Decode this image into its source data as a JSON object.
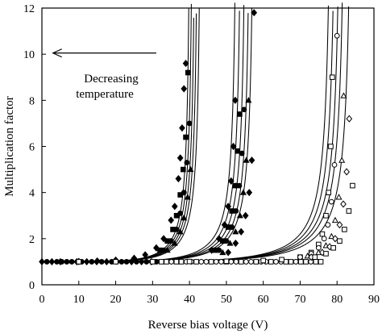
{
  "chart_data": {
    "type": "scatter",
    "title": "",
    "xlabel": "Reverse bias voltage (V)",
    "ylabel": "Multiplication factor",
    "xlim": [
      0,
      90
    ],
    "ylim": [
      0,
      12
    ],
    "xticks": [
      0,
      10,
      20,
      30,
      40,
      50,
      60,
      70,
      80,
      90
    ],
    "yticks": [
      0,
      2,
      4,
      6,
      8,
      10,
      12
    ],
    "grid": false,
    "legend": "none",
    "annotation": {
      "lines": [
        "Decreasing",
        "temperature"
      ],
      "arrow": "left",
      "arrow_from": [
        31,
        10.05
      ],
      "arrow_to": [
        3,
        10.05
      ]
    },
    "curve_families": [
      {
        "marker": "diamond-filled",
        "breakdowns": [
          40.5,
          41.2,
          41.9,
          42.6,
          43.4
        ]
      },
      {
        "marker": "mixed-filled",
        "breakdowns": [
          53.2,
          54.5,
          55.7,
          56.9,
          57.9
        ]
      },
      {
        "marker": "mixed-open",
        "breakdowns": [
          79.0,
          80.3,
          81.6,
          82.8,
          84.6
        ]
      }
    ],
    "series": [
      {
        "marker": "diamond-filled",
        "x": [
          5,
          10,
          15,
          20,
          25,
          28,
          31,
          33,
          35,
          36,
          37,
          37.5,
          38,
          38.5,
          39
        ],
        "y": [
          1.0,
          1.01,
          1.03,
          1.07,
          1.15,
          1.3,
          1.6,
          2.0,
          2.8,
          3.4,
          4.6,
          5.5,
          6.8,
          8.5,
          9.6
        ]
      },
      {
        "marker": "square-filled",
        "x": [
          32,
          34,
          35.5,
          36.5,
          37.5,
          38.3,
          39,
          39.6
        ],
        "y": [
          1.5,
          1.9,
          2.4,
          3.0,
          3.9,
          5.0,
          6.4,
          9.2
        ]
      },
      {
        "marker": "circle-filled",
        "x": [
          33,
          35,
          36.5,
          37.5,
          38.5,
          39.3,
          40
        ],
        "y": [
          1.5,
          1.9,
          2.4,
          3.1,
          4.0,
          5.3,
          7.0
        ]
      },
      {
        "marker": "triangle-filled",
        "x": [
          34,
          36,
          37.5,
          38.5,
          39.5,
          40.3
        ],
        "y": [
          1.5,
          1.8,
          2.3,
          2.9,
          3.8,
          5.0
        ]
      },
      {
        "marker": "diamond-filled",
        "x": [
          46,
          48,
          49.5,
          50.5,
          51.3,
          51.9,
          52.4
        ],
        "y": [
          1.5,
          2.0,
          2.6,
          3.4,
          4.5,
          6.0,
          8.0
        ]
      },
      {
        "marker": "square-filled",
        "x": [
          47,
          49,
          50.5,
          51.5,
          52.4,
          53,
          53.6
        ],
        "y": [
          1.5,
          1.9,
          2.5,
          3.2,
          4.3,
          5.8,
          7.4
        ]
      },
      {
        "marker": "circle-filled",
        "x": [
          48,
          50,
          51.5,
          52.6,
          53.5,
          54.2,
          54.8
        ],
        "y": [
          1.5,
          1.9,
          2.5,
          3.2,
          4.3,
          5.7,
          7.6
        ]
      },
      {
        "marker": "triangle-filled",
        "x": [
          49,
          51,
          52.5,
          53.7,
          54.6,
          55.4,
          56.0
        ],
        "y": [
          1.4,
          1.8,
          2.3,
          3.0,
          4.0,
          5.4,
          8.0
        ]
      },
      {
        "marker": "diamond-filled",
        "x": [
          50.5,
          52.5,
          54,
          55.2,
          56.2,
          56.9,
          57.5
        ],
        "y": [
          1.4,
          1.8,
          2.3,
          3.0,
          4.0,
          5.4,
          11.8
        ]
      },
      {
        "marker": "square-open",
        "x": [
          10,
          20,
          30,
          40,
          50,
          60,
          65,
          70,
          73,
          75,
          76,
          77,
          77.7,
          78.3,
          78.7
        ],
        "y": [
          1.0,
          1.0,
          1.0,
          1.01,
          1.02,
          1.05,
          1.09,
          1.2,
          1.4,
          1.75,
          2.2,
          3.0,
          4.0,
          6.0,
          9.0
        ]
      },
      {
        "marker": "circle-open",
        "x": [
          70,
          73,
          75,
          76.5,
          77.5,
          78.5,
          79.3,
          80
        ],
        "y": [
          1.2,
          1.35,
          1.6,
          2.0,
          2.6,
          3.6,
          5.2,
          10.8
        ]
      },
      {
        "marker": "triangle-open",
        "x": [
          72,
          75,
          77,
          78.5,
          79.5,
          80.5,
          81.3,
          81.8
        ],
        "y": [
          1.25,
          1.4,
          1.7,
          2.1,
          2.8,
          3.8,
          5.4,
          8.2
        ]
      },
      {
        "marker": "diamond-open",
        "x": [
          73,
          76,
          78,
          79.5,
          80.7,
          81.7,
          82.6,
          83.3
        ],
        "y": [
          1.2,
          1.4,
          1.65,
          2.0,
          2.6,
          3.5,
          4.9,
          7.2
        ]
      },
      {
        "marker": "square-open",
        "x": [
          74,
          77,
          79,
          80.7,
          82,
          83.2,
          84.2
        ],
        "y": [
          1.2,
          1.35,
          1.6,
          1.9,
          2.4,
          3.2,
          4.3
        ]
      }
    ]
  }
}
